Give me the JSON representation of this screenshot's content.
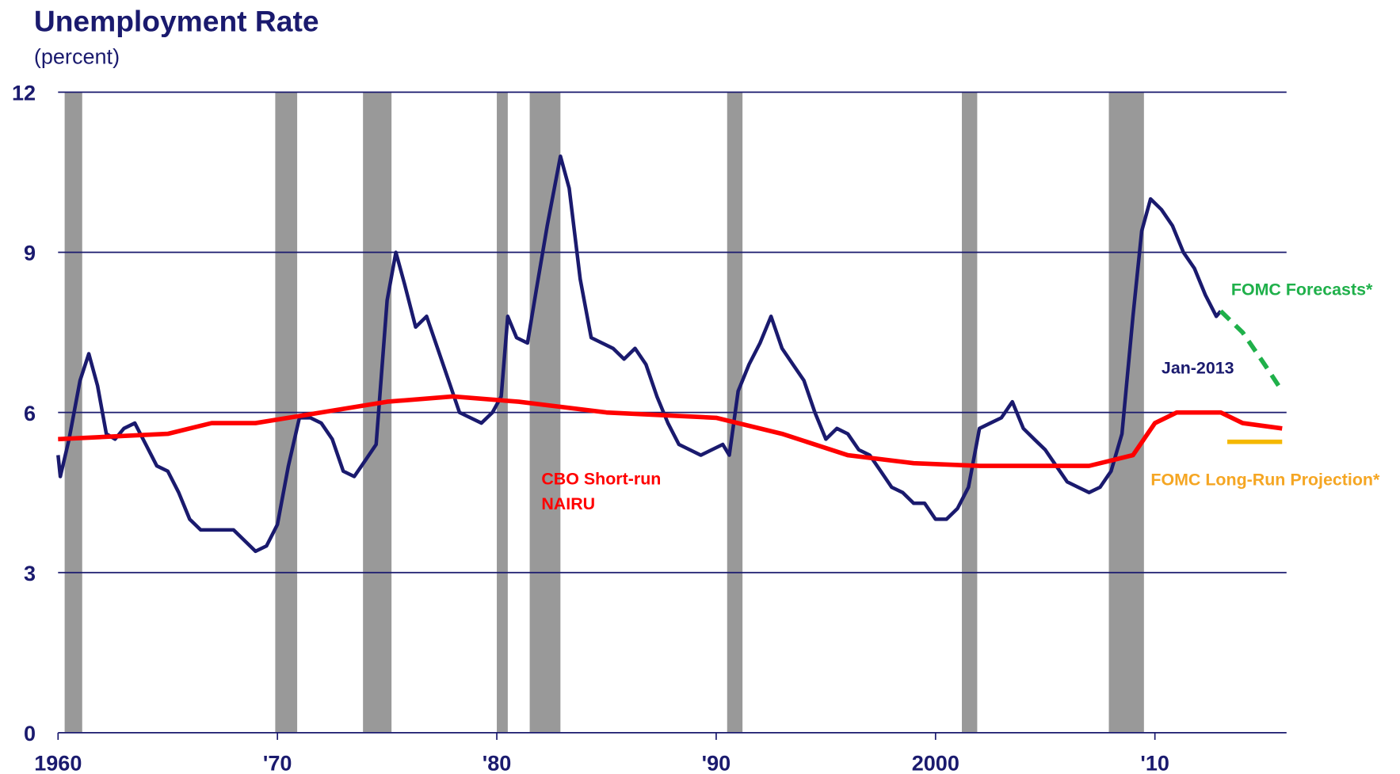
{
  "chart_data": {
    "type": "line",
    "title": "Unemployment Rate",
    "subtitle": "(percent)",
    "xlim": [
      1960,
      2016
    ],
    "ylim": [
      0,
      12
    ],
    "xticks": [
      1960,
      {
        "value": 1970,
        "label": "'70"
      },
      {
        "value": 1980,
        "label": "'80"
      },
      {
        "value": 1990,
        "label": "'90"
      },
      2000,
      {
        "value": 2010,
        "label": "'10"
      }
    ],
    "yticks": [
      0,
      3,
      6,
      9,
      12
    ],
    "grid": true,
    "recessions": [
      [
        1960.3,
        1961.1
      ],
      [
        1969.9,
        1970.9
      ],
      [
        1973.9,
        1975.2
      ],
      [
        1980.0,
        1980.5
      ],
      [
        1981.5,
        1982.9
      ],
      [
        1990.5,
        1991.2
      ],
      [
        2001.2,
        2001.9
      ],
      [
        2007.9,
        2009.5
      ]
    ],
    "recession_color": "#999999",
    "series": [
      {
        "color": "#1a1a6e",
        "dashed": false,
        "x": [
          1960.0,
          1960.1,
          1960.5,
          1961.0,
          1961.4,
          1961.8,
          1962.2,
          1962.6,
          1963.0,
          1963.5,
          1964.0,
          1964.5,
          1965.0,
          1965.5,
          1966.0,
          1966.5,
          1967.0,
          1967.5,
          1968.0,
          1968.5,
          1969.0,
          1969.5,
          1970.0,
          1970.5,
          1971.0,
          1971.5,
          1972.0,
          1972.5,
          1973.0,
          1973.5,
          1974.0,
          1974.5,
          1975.0,
          1975.4,
          1975.8,
          1976.3,
          1976.8,
          1977.3,
          1977.8,
          1978.3,
          1978.8,
          1979.3,
          1979.8,
          1980.2,
          1980.5,
          1980.9,
          1981.4,
          1981.8,
          1982.3,
          1982.9,
          1983.3,
          1983.8,
          1984.3,
          1984.8,
          1985.3,
          1985.8,
          1986.3,
          1986.8,
          1987.3,
          1987.8,
          1988.3,
          1988.8,
          1989.3,
          1989.8,
          1990.3,
          1990.6,
          1991.0,
          1991.5,
          1992.0,
          1992.5,
          1993.0,
          1993.5,
          1994.0,
          1994.5,
          1995.0,
          1995.5,
          1996.0,
          1996.5,
          1997.0,
          1997.5,
          1998.0,
          1998.5,
          1999.0,
          1999.5,
          2000.0,
          2000.5,
          2001.0,
          2001.5,
          2002.0,
          2002.5,
          2003.0,
          2003.5,
          2004.0,
          2004.5,
          2005.0,
          2005.5,
          2006.0,
          2006.5,
          2007.0,
          2007.5,
          2008.0,
          2008.5,
          2009.0,
          2009.4,
          2009.8,
          2010.3,
          2010.8,
          2011.3,
          2011.8,
          2012.3,
          2012.8,
          2013.0
        ],
        "values": [
          5.2,
          4.8,
          5.5,
          6.6,
          7.1,
          6.5,
          5.6,
          5.5,
          5.7,
          5.8,
          5.4,
          5.0,
          4.9,
          4.5,
          4.0,
          3.8,
          3.8,
          3.8,
          3.8,
          3.6,
          3.4,
          3.5,
          3.9,
          5.0,
          5.9,
          5.9,
          5.8,
          5.5,
          4.9,
          4.8,
          5.1,
          5.4,
          8.1,
          9.0,
          8.4,
          7.6,
          7.8,
          7.2,
          6.6,
          6.0,
          5.9,
          5.8,
          6.0,
          6.3,
          7.8,
          7.4,
          7.3,
          8.3,
          9.5,
          10.8,
          10.2,
          8.5,
          7.4,
          7.3,
          7.2,
          7.0,
          7.2,
          6.9,
          6.3,
          5.8,
          5.4,
          5.3,
          5.2,
          5.3,
          5.4,
          5.2,
          6.4,
          6.9,
          7.3,
          7.8,
          7.2,
          6.9,
          6.6,
          6.0,
          5.5,
          5.7,
          5.6,
          5.3,
          5.2,
          4.9,
          4.6,
          4.5,
          4.3,
          4.3,
          4.0,
          4.0,
          4.2,
          4.6,
          5.7,
          5.8,
          5.9,
          6.2,
          5.7,
          5.5,
          5.3,
          5.0,
          4.7,
          4.6,
          4.5,
          4.6,
          4.9,
          5.6,
          7.8,
          9.4,
          10.0,
          9.8,
          9.5,
          9.0,
          8.7,
          8.2,
          7.8,
          7.9
        ]
      },
      {
        "color": "#ff0000",
        "dashed": false,
        "x": [
          1960,
          1965,
          1967,
          1969,
          1972,
          1975,
          1978,
          1981,
          1985,
          1990,
          1993,
          1996,
          1999,
          2002,
          2007,
          2009,
          2010,
          2011,
          2012,
          2013,
          2014,
          2015.8
        ],
        "values": [
          5.5,
          5.6,
          5.8,
          5.8,
          6.0,
          6.2,
          6.3,
          6.2,
          6.0,
          5.9,
          5.6,
          5.2,
          5.05,
          5.0,
          5.0,
          5.2,
          5.8,
          6.0,
          6.0,
          6.0,
          5.8,
          5.7
        ]
      },
      {
        "color": "#1fb04a",
        "dashed": true,
        "x": [
          2013.0,
          2014.0,
          2015.0,
          2015.8
        ],
        "values": [
          7.9,
          7.5,
          6.9,
          6.4
        ]
      },
      {
        "color": "#f5b800",
        "dashed": false,
        "x": [
          2013.3,
          2015.8
        ],
        "values": [
          5.45,
          5.45
        ]
      }
    ],
    "annotations": [
      {
        "lines": [
          "Jan-2013"
        ],
        "color": "#1a1a6e"
      },
      {
        "lines": [
          "FOMC Forecasts*"
        ],
        "color": "#1fb04a"
      },
      {
        "lines": [
          "CBO Short-run",
          "NAIRU"
        ],
        "color": "#ff0000"
      },
      {
        "lines": [
          "FOMC Long-Run Projection*"
        ],
        "color": "#f5a623"
      }
    ]
  }
}
